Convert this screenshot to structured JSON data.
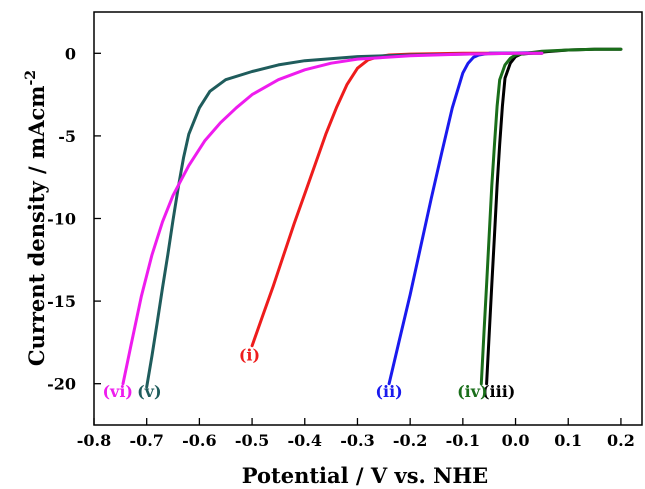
{
  "chart_data": {
    "type": "line",
    "title": "",
    "xlabel": "Potential / V vs. NHE",
    "ylabel_main": "Current density / mAcm",
    "ylabel_sup": "-2",
    "xlim": [
      -0.8,
      0.24
    ],
    "ylim": [
      -22.5,
      2.5
    ],
    "grid": false,
    "legend": "none",
    "x_ticks": [
      -0.8,
      -0.7,
      -0.6,
      -0.5,
      -0.4,
      -0.3,
      -0.2,
      -0.1,
      0.0,
      0.1,
      0.2
    ],
    "x_tick_labels": [
      "-0.8",
      "-0.7",
      "-0.6",
      "-0.5",
      "-0.4",
      "-0.3",
      "-0.2",
      "-0.1",
      "0.0",
      "0.1",
      "0.2"
    ],
    "y_ticks": [
      0,
      -5,
      -10,
      -15,
      -20
    ],
    "y_tick_labels": [
      "0",
      "-5",
      "-10",
      "-15",
      "-20"
    ],
    "series": [
      {
        "label": "(i)",
        "color": "#ee1c1c",
        "label_at": [
          -0.505,
          -18.6
        ],
        "points": [
          [
            -0.5,
            -17.7
          ],
          [
            -0.48,
            -15.9
          ],
          [
            -0.46,
            -14.1
          ],
          [
            -0.44,
            -12.2
          ],
          [
            -0.42,
            -10.3
          ],
          [
            -0.4,
            -8.5
          ],
          [
            -0.38,
            -6.7
          ],
          [
            -0.36,
            -4.9
          ],
          [
            -0.34,
            -3.3
          ],
          [
            -0.32,
            -1.9
          ],
          [
            -0.3,
            -0.9
          ],
          [
            -0.28,
            -0.4
          ],
          [
            -0.26,
            -0.2
          ],
          [
            -0.24,
            -0.1
          ],
          [
            -0.2,
            -0.05
          ],
          [
            -0.1,
            0.0
          ],
          [
            0.0,
            0.0
          ],
          [
            0.05,
            0.0
          ]
        ]
      },
      {
        "label": "(ii)",
        "color": "#1a1aee",
        "label_at": [
          -0.24,
          -20.8
        ],
        "points": [
          [
            -0.24,
            -20.0
          ],
          [
            -0.22,
            -17.3
          ],
          [
            -0.2,
            -14.6
          ],
          [
            -0.18,
            -11.7
          ],
          [
            -0.16,
            -8.8
          ],
          [
            -0.14,
            -6.0
          ],
          [
            -0.12,
            -3.3
          ],
          [
            -0.1,
            -1.2
          ],
          [
            -0.09,
            -0.6
          ],
          [
            -0.08,
            -0.25
          ],
          [
            -0.07,
            -0.1
          ],
          [
            -0.05,
            0.0
          ],
          [
            0.0,
            0.02
          ],
          [
            0.05,
            0.05
          ]
        ]
      },
      {
        "label": "(iii)",
        "color": "#000000",
        "label_at": [
          -0.032,
          -20.8
        ],
        "points": [
          [
            -0.055,
            -20.0
          ],
          [
            -0.05,
            -17.0
          ],
          [
            -0.045,
            -14.0
          ],
          [
            -0.04,
            -11.0
          ],
          [
            -0.035,
            -8.0
          ],
          [
            -0.03,
            -5.5
          ],
          [
            -0.025,
            -3.2
          ],
          [
            -0.02,
            -1.5
          ],
          [
            -0.01,
            -0.6
          ],
          [
            0.0,
            -0.2
          ],
          [
            0.01,
            -0.05
          ],
          [
            0.03,
            0.0
          ],
          [
            0.06,
            0.1
          ],
          [
            0.1,
            0.2
          ],
          [
            0.15,
            0.25
          ],
          [
            0.2,
            0.25
          ]
        ]
      },
      {
        "label": "(iv)",
        "color": "#1a6e1a",
        "label_at": [
          -0.082,
          -20.8
        ],
        "points": [
          [
            -0.065,
            -20.0
          ],
          [
            -0.06,
            -17.0
          ],
          [
            -0.055,
            -14.0
          ],
          [
            -0.05,
            -11.0
          ],
          [
            -0.045,
            -8.0
          ],
          [
            -0.04,
            -5.5
          ],
          [
            -0.035,
            -3.2
          ],
          [
            -0.03,
            -1.6
          ],
          [
            -0.02,
            -0.7
          ],
          [
            -0.01,
            -0.3
          ],
          [
            0.0,
            -0.1
          ],
          [
            0.02,
            0.0
          ],
          [
            0.05,
            0.12
          ],
          [
            0.1,
            0.2
          ],
          [
            0.15,
            0.25
          ],
          [
            0.2,
            0.25
          ]
        ]
      },
      {
        "label": "(v)",
        "color": "#1f5c5c",
        "label_at": [
          -0.695,
          -20.8
        ],
        "points": [
          [
            -0.7,
            -20.2
          ],
          [
            -0.69,
            -18.3
          ],
          [
            -0.68,
            -16.3
          ],
          [
            -0.67,
            -14.2
          ],
          [
            -0.66,
            -12.2
          ],
          [
            -0.65,
            -10.1
          ],
          [
            -0.64,
            -8.1
          ],
          [
            -0.63,
            -6.3
          ],
          [
            -0.62,
            -4.9
          ],
          [
            -0.6,
            -3.3
          ],
          [
            -0.58,
            -2.3
          ],
          [
            -0.55,
            -1.6
          ],
          [
            -0.5,
            -1.1
          ],
          [
            -0.45,
            -0.7
          ],
          [
            -0.4,
            -0.45
          ],
          [
            -0.3,
            -0.2
          ],
          [
            -0.2,
            -0.1
          ],
          [
            -0.1,
            -0.05
          ],
          [
            0.0,
            0.0
          ],
          [
            0.05,
            0.0
          ]
        ]
      },
      {
        "label": "(vi)",
        "color": "#ee1cee",
        "label_at": [
          -0.755,
          -20.8
        ],
        "points": [
          [
            -0.745,
            -20.0
          ],
          [
            -0.73,
            -17.7
          ],
          [
            -0.71,
            -14.7
          ],
          [
            -0.69,
            -12.2
          ],
          [
            -0.67,
            -10.2
          ],
          [
            -0.65,
            -8.6
          ],
          [
            -0.62,
            -6.8
          ],
          [
            -0.59,
            -5.3
          ],
          [
            -0.56,
            -4.2
          ],
          [
            -0.53,
            -3.3
          ],
          [
            -0.5,
            -2.5
          ],
          [
            -0.45,
            -1.6
          ],
          [
            -0.4,
            -1.0
          ],
          [
            -0.35,
            -0.6
          ],
          [
            -0.3,
            -0.35
          ],
          [
            -0.2,
            -0.15
          ],
          [
            -0.1,
            -0.05
          ],
          [
            0.0,
            0.0
          ],
          [
            0.05,
            0.0
          ]
        ]
      }
    ]
  }
}
